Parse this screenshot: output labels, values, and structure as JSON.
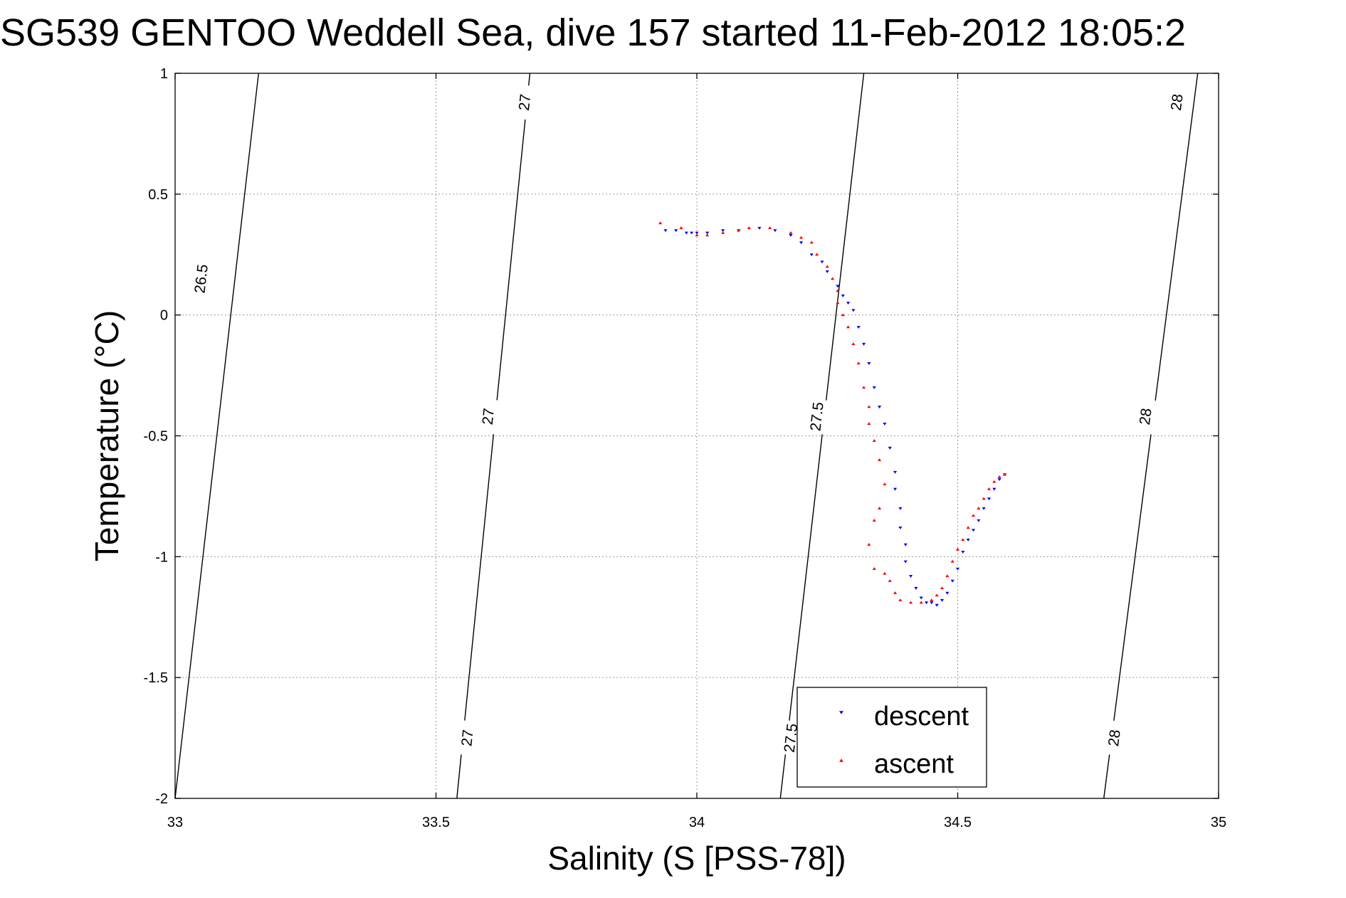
{
  "chart_data": {
    "type": "scatter",
    "title": "SG539 GENTOO Weddell Sea, dive 157 started 11-Feb-2012 18:05:2",
    "xlabel": "Salinity (S [PSS-78])",
    "ylabel": "Temperature (°C)",
    "xlim": [
      33,
      35
    ],
    "ylim": [
      -2,
      1
    ],
    "xticks": [
      33,
      33.5,
      34,
      34.5,
      35
    ],
    "xtick_labels": [
      "33",
      "33.5",
      "34",
      "34.5",
      "35"
    ],
    "yticks": [
      -2,
      -1.5,
      -1,
      -0.5,
      0,
      0.5,
      1
    ],
    "ytick_labels": [
      "-2",
      "-1.5",
      "-1",
      "-0.5",
      "0",
      "0.5",
      "1"
    ],
    "grid": true,
    "legend_position": "bottom-center",
    "colors": {
      "descent": "#0000ff",
      "ascent": "#ff0000",
      "contour": "#000000"
    },
    "series": [
      {
        "name": "descent",
        "marker": "triangle-down",
        "x": [
          33.94,
          33.96,
          33.98,
          33.99,
          34.0,
          34.02,
          34.05,
          34.08,
          34.12,
          34.15,
          34.18,
          34.2,
          34.22,
          34.24,
          34.25,
          34.27,
          34.28,
          34.29,
          34.3,
          34.31,
          34.32,
          34.33,
          34.34,
          34.35,
          34.36,
          34.37,
          34.38,
          34.38,
          34.39,
          34.39,
          34.4,
          34.4,
          34.41,
          34.42,
          34.43,
          34.44,
          34.45,
          34.46,
          34.47,
          34.48,
          34.49,
          34.5,
          34.51,
          34.52,
          34.53,
          34.54,
          34.55,
          34.56,
          34.57,
          34.58,
          34.59
        ],
        "y": [
          0.35,
          0.35,
          0.34,
          0.34,
          0.34,
          0.34,
          0.35,
          0.35,
          0.36,
          0.35,
          0.33,
          0.3,
          0.25,
          0.22,
          0.18,
          0.12,
          0.08,
          0.05,
          0.02,
          -0.05,
          -0.12,
          -0.2,
          -0.3,
          -0.38,
          -0.45,
          -0.55,
          -0.65,
          -0.72,
          -0.8,
          -0.88,
          -0.95,
          -1.02,
          -1.08,
          -1.13,
          -1.17,
          -1.19,
          -1.19,
          -1.2,
          -1.18,
          -1.15,
          -1.1,
          -1.05,
          -0.98,
          -0.93,
          -0.89,
          -0.85,
          -0.8,
          -0.76,
          -0.72,
          -0.68,
          -0.66
        ]
      },
      {
        "name": "ascent",
        "marker": "triangle-up",
        "x": [
          33.93,
          33.97,
          34.0,
          34.02,
          34.05,
          34.08,
          34.1,
          34.14,
          34.18,
          34.2,
          34.22,
          34.23,
          34.25,
          34.26,
          34.27,
          34.27,
          34.28,
          34.29,
          34.3,
          34.31,
          34.32,
          34.33,
          34.33,
          34.34,
          34.35,
          34.36,
          34.35,
          34.34,
          34.33,
          34.34,
          34.36,
          34.37,
          34.38,
          34.39,
          34.41,
          34.43,
          34.45,
          34.46,
          34.47,
          34.48,
          34.49,
          34.5,
          34.51,
          34.52,
          34.53,
          34.54,
          34.55,
          34.56,
          34.57,
          34.58,
          34.59
        ],
        "y": [
          0.38,
          0.36,
          0.33,
          0.33,
          0.34,
          0.35,
          0.36,
          0.36,
          0.34,
          0.32,
          0.3,
          0.25,
          0.2,
          0.15,
          0.1,
          0.05,
          0.0,
          -0.05,
          -0.12,
          -0.2,
          -0.3,
          -0.38,
          -0.45,
          -0.52,
          -0.6,
          -0.7,
          -0.8,
          -0.85,
          -0.95,
          -1.05,
          -1.07,
          -1.1,
          -1.15,
          -1.18,
          -1.19,
          -1.19,
          -1.18,
          -1.16,
          -1.13,
          -1.08,
          -1.02,
          -0.97,
          -0.93,
          -0.88,
          -0.83,
          -0.8,
          -0.76,
          -0.72,
          -0.69,
          -0.67,
          -0.66
        ]
      }
    ],
    "density_contours": [
      {
        "label": "26.5",
        "s_at_tmax": 33.16,
        "s_at_tmin": 33.0,
        "label_points": [
          [
            33.05,
            0.15
          ]
        ]
      },
      {
        "label": "27",
        "s_at_tmax": 33.68,
        "s_at_tmin": 33.54,
        "label_points": [
          [
            33.67,
            0.88
          ],
          [
            33.6,
            -0.42
          ],
          [
            33.56,
            -1.75
          ]
        ]
      },
      {
        "label": "27.5",
        "s_at_tmax": 34.32,
        "s_at_tmin": 34.16,
        "label_points": [
          [
            34.23,
            -0.42
          ],
          [
            34.18,
            -1.75
          ]
        ]
      },
      {
        "label": "28",
        "s_at_tmax": 34.96,
        "s_at_tmin": 34.78,
        "label_points": [
          [
            34.92,
            0.88
          ],
          [
            34.86,
            -0.42
          ],
          [
            34.8,
            -1.75
          ]
        ]
      }
    ]
  }
}
